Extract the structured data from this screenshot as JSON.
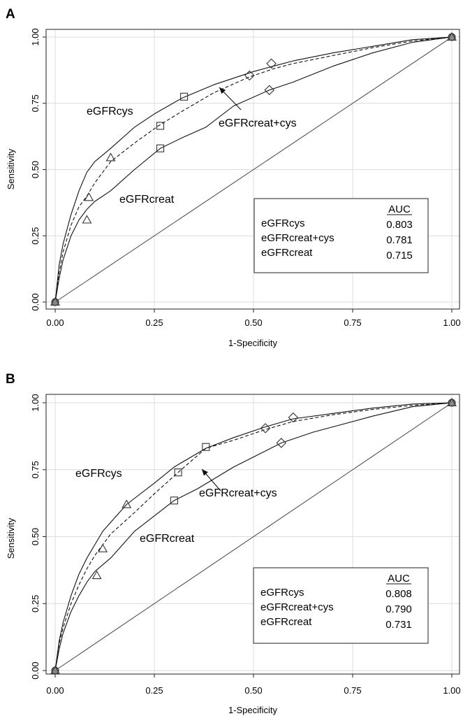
{
  "chart_data": [
    {
      "panel": "A",
      "type": "line",
      "xlabel": "1-Specificity",
      "ylabel": "Sensitivity",
      "xlim": [
        0,
        1
      ],
      "ylim": [
        0,
        1
      ],
      "xticks": [
        "0.00",
        "0.25",
        "0.50",
        "0.75",
        "1.00"
      ],
      "yticks": [
        "0.00",
        "0.25",
        "0.50",
        "0.75",
        "1.00"
      ],
      "grid": true,
      "reference_line": true,
      "series": [
        {
          "name": "eGFRcys",
          "style": "solid",
          "x": [
            0,
            0.01,
            0.02,
            0.04,
            0.06,
            0.08,
            0.1,
            0.14,
            0.2,
            0.25,
            0.32,
            0.4,
            0.5,
            0.55,
            0.6,
            0.7,
            0.8,
            0.9,
            1.0
          ],
          "y": [
            0,
            0.14,
            0.22,
            0.33,
            0.42,
            0.49,
            0.53,
            0.58,
            0.66,
            0.71,
            0.77,
            0.82,
            0.87,
            0.89,
            0.91,
            0.94,
            0.965,
            0.99,
            1.0
          ],
          "markers": {
            "shape": "triangle",
            "points": [
              [
                0.14,
                0.545
              ],
              [
                0.085,
                0.395
              ],
              [
                0.08,
                0.31
              ]
            ]
          }
        },
        {
          "name": "eGFRcreat+cys",
          "style": "dashed",
          "x": [
            0,
            0.01,
            0.02,
            0.04,
            0.06,
            0.08,
            0.1,
            0.14,
            0.2,
            0.26,
            0.32,
            0.4,
            0.49,
            0.55,
            0.6,
            0.7,
            0.8,
            0.9,
            1.0
          ],
          "y": [
            0,
            0.11,
            0.19,
            0.29,
            0.36,
            0.4,
            0.45,
            0.53,
            0.6,
            0.665,
            0.72,
            0.79,
            0.85,
            0.88,
            0.9,
            0.93,
            0.96,
            0.985,
            1.0
          ],
          "markers": {
            "shape": "square",
            "points": [
              [
                0.265,
                0.665
              ],
              [
                0.325,
                0.775
              ]
            ]
          }
        },
        {
          "name": "eGFRcreat",
          "style": "solid",
          "x": [
            0,
            0.01,
            0.02,
            0.04,
            0.06,
            0.08,
            0.1,
            0.14,
            0.2,
            0.265,
            0.32,
            0.38,
            0.45,
            0.54,
            0.6,
            0.7,
            0.8,
            0.9,
            1.0
          ],
          "y": [
            0,
            0.09,
            0.16,
            0.25,
            0.31,
            0.35,
            0.38,
            0.42,
            0.5,
            0.58,
            0.62,
            0.66,
            0.74,
            0.8,
            0.83,
            0.89,
            0.94,
            0.98,
            1.0
          ],
          "markers": {
            "shape": "square",
            "points": [
              [
                0.265,
                0.58
              ]
            ]
          }
        }
      ],
      "diamond_markers": [
        [
          0.49,
          0.855
        ],
        [
          0.545,
          0.9
        ],
        [
          0.54,
          0.8
        ]
      ],
      "annotations": {
        "cys": "eGFRcys",
        "comb": "eGFRcreat+cys",
        "creat": "eGFRcreat"
      },
      "legend": {
        "placement": "bottom-right",
        "header": "AUC",
        "rows": [
          {
            "label": "eGFRcys",
            "auc": "0.803"
          },
          {
            "label": "eGFRcreat+cys",
            "auc": "0.781"
          },
          {
            "label": "eGFRcreat",
            "auc": "0.715"
          }
        ]
      }
    },
    {
      "panel": "B",
      "type": "line",
      "xlabel": "1-Specificity",
      "ylabel": "Sensitivity",
      "xlim": [
        0,
        1
      ],
      "ylim": [
        0,
        1
      ],
      "xticks": [
        "0.00",
        "0.25",
        "0.50",
        "0.75",
        "1.00"
      ],
      "yticks": [
        "0.00",
        "0.25",
        "0.50",
        "0.75",
        "1.00"
      ],
      "grid": true,
      "reference_line": true,
      "series": [
        {
          "name": "eGFRcys",
          "style": "solid",
          "x": [
            0,
            0.01,
            0.02,
            0.04,
            0.06,
            0.08,
            0.1,
            0.12,
            0.18,
            0.25,
            0.3,
            0.38,
            0.45,
            0.53,
            0.6,
            0.7,
            0.8,
            0.9,
            1.0
          ],
          "y": [
            0,
            0.11,
            0.18,
            0.28,
            0.36,
            0.42,
            0.47,
            0.52,
            0.62,
            0.7,
            0.76,
            0.83,
            0.87,
            0.91,
            0.94,
            0.96,
            0.98,
            0.995,
            1.0
          ],
          "markers": {
            "shape": "triangle",
            "points": [
              [
                0.18,
                0.62
              ],
              [
                0.12,
                0.455
              ],
              [
                0.105,
                0.355
              ]
            ]
          }
        },
        {
          "name": "eGFRcreat+cys",
          "style": "dashed",
          "x": [
            0,
            0.01,
            0.02,
            0.04,
            0.06,
            0.08,
            0.1,
            0.14,
            0.2,
            0.25,
            0.31,
            0.38,
            0.45,
            0.53,
            0.6,
            0.7,
            0.8,
            0.9,
            1.0
          ],
          "y": [
            0,
            0.1,
            0.16,
            0.25,
            0.32,
            0.38,
            0.43,
            0.51,
            0.59,
            0.66,
            0.74,
            0.83,
            0.86,
            0.9,
            0.93,
            0.955,
            0.975,
            0.99,
            1.0
          ],
          "markers": {
            "shape": "square",
            "points": [
              [
                0.31,
                0.74
              ],
              [
                0.38,
                0.835
              ]
            ]
          }
        },
        {
          "name": "eGFRcreat",
          "style": "solid",
          "x": [
            0,
            0.01,
            0.02,
            0.04,
            0.06,
            0.08,
            0.1,
            0.14,
            0.2,
            0.3,
            0.36,
            0.45,
            0.57,
            0.65,
            0.7,
            0.8,
            0.9,
            1.0
          ],
          "y": [
            0,
            0.08,
            0.14,
            0.22,
            0.28,
            0.33,
            0.37,
            0.42,
            0.52,
            0.635,
            0.68,
            0.76,
            0.85,
            0.89,
            0.91,
            0.95,
            0.985,
            1.0
          ],
          "markers": {
            "shape": "square",
            "points": [
              [
                0.3,
                0.635
              ]
            ]
          }
        }
      ],
      "diamond_markers": [
        [
          0.53,
          0.905
        ],
        [
          0.6,
          0.945
        ],
        [
          0.57,
          0.85
        ]
      ],
      "annotations": {
        "cys": "eGFRcys",
        "comb": "eGFRcreat+cys",
        "creat": "eGFRcreat"
      },
      "legend": {
        "placement": "bottom-right",
        "header": "AUC",
        "rows": [
          {
            "label": "eGFRcys",
            "auc": "0.808"
          },
          {
            "label": "eGFRcreat+cys",
            "auc": "0.790"
          },
          {
            "label": "eGFRcreat",
            "auc": "0.731"
          }
        ]
      }
    }
  ]
}
